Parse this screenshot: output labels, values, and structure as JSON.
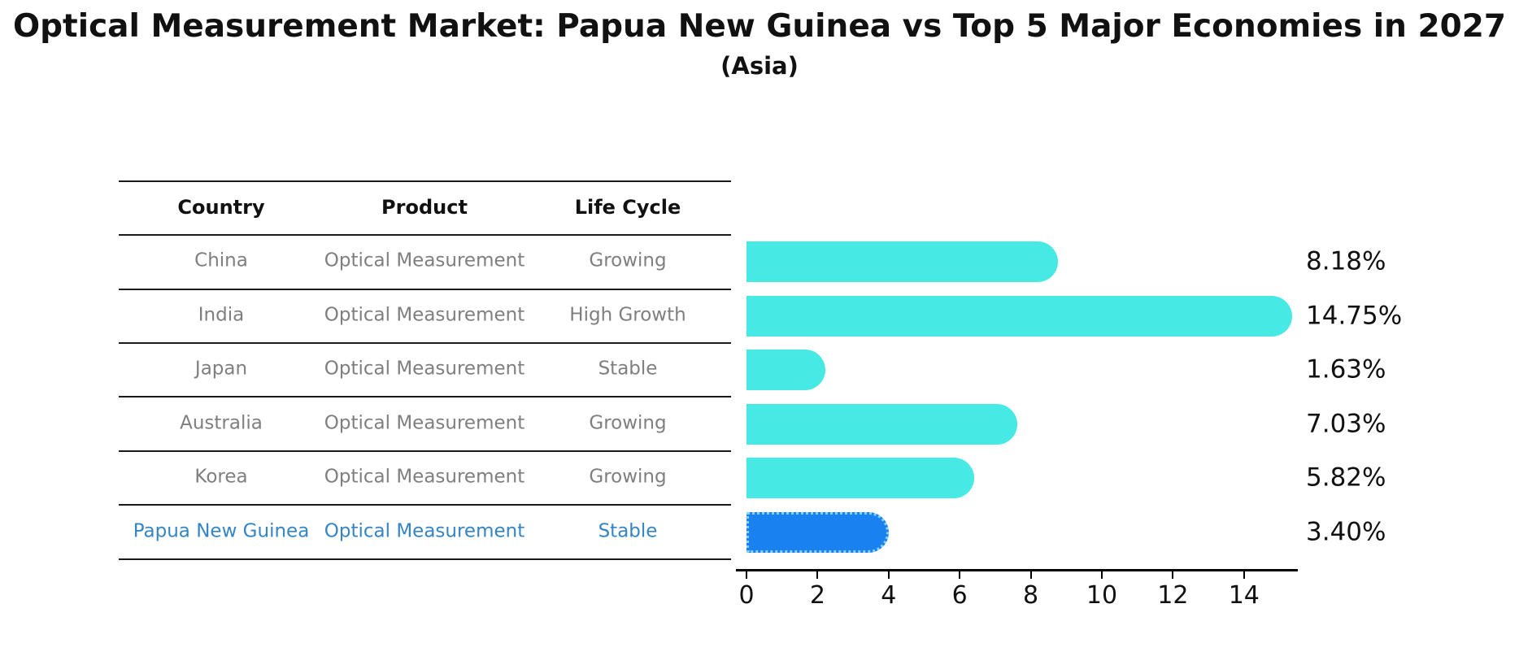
{
  "header": {
    "title": "Optical Measurement Market: Papua New Guinea vs Top 5 Major Economies in 2027",
    "subtitle": "(Asia)"
  },
  "table": {
    "headers": [
      "Country",
      "Product",
      "Life Cycle"
    ],
    "rows": [
      {
        "country": "China",
        "product": "Optical Measurement",
        "life_cycle": "Growing"
      },
      {
        "country": "India",
        "product": "Optical Measurement",
        "life_cycle": "High Growth"
      },
      {
        "country": "Japan",
        "product": "Optical Measurement",
        "life_cycle": "Stable"
      },
      {
        "country": "Australia",
        "product": "Optical Measurement",
        "life_cycle": "Growing"
      },
      {
        "country": "Korea",
        "product": "Optical Measurement",
        "life_cycle": "Growing"
      },
      {
        "country": "Papua New Guinea",
        "product": "Optical Measurement",
        "life_cycle": "Stable"
      }
    ],
    "highlight_row_index": 5
  },
  "chart_data": {
    "type": "bar",
    "orientation": "horizontal",
    "title": "Optical Measurement Market: Papua New Guinea vs Top 5 Major Economies in 2027",
    "subtitle": "(Asia)",
    "categories": [
      "China",
      "India",
      "Japan",
      "Australia",
      "Korea",
      "Papua New Guinea"
    ],
    "values": [
      8.18,
      14.75,
      1.63,
      7.03,
      5.82,
      3.4
    ],
    "value_labels": [
      "8.18%",
      "14.75%",
      "1.63%",
      "7.03%",
      "5.82%",
      "3.40%"
    ],
    "x_ticks": [
      0,
      2,
      4,
      6,
      8,
      10,
      12,
      14
    ],
    "xlim": [
      0,
      15.5
    ],
    "grid": false,
    "legend": null,
    "highlight_index": 5,
    "colors": {
      "bar": "#46E9E3",
      "highlight_bar": "#1A82F0",
      "highlight_border": "#8AD0F0",
      "row_text": "#7f7f7f",
      "highlight_text": "#3585C6",
      "header_text": "#111111",
      "value_text": "#111111",
      "axis": "#000000"
    }
  }
}
